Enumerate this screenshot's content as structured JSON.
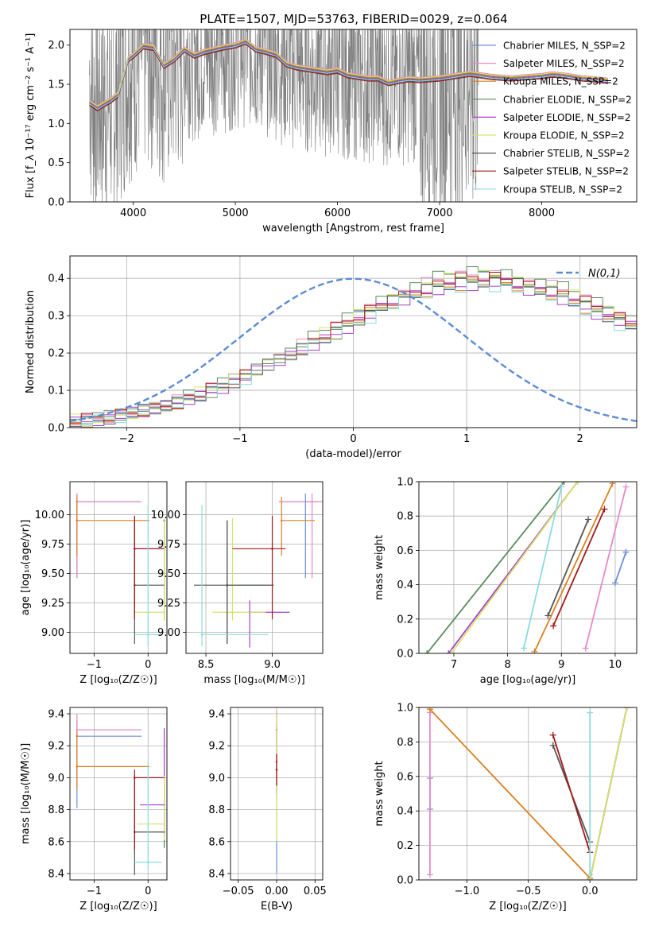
{
  "figure": {
    "title": "PLATE=1507, MJD=53763, FIBERID=0029, z=0.064"
  },
  "colors": {
    "data": "#7f7f7f",
    "grid": "#b0b0b0",
    "series": [
      "#6a8fd6",
      "#e68ac6",
      "#d9801f",
      "#5a8a5e",
      "#a83fc9",
      "#d6e36a",
      "#555555",
      "#a31a1a",
      "#8adbe0"
    ]
  },
  "chart_data": [
    {
      "id": "spectrum",
      "type": "line",
      "xlabel": "wavelength [Angstrom, rest frame]",
      "ylabel": "Flux [f_λ 10⁻¹⁷ erg cm⁻² s⁻¹ A⁻¹]",
      "xlim": [
        3380,
        8930
      ],
      "ylim": [
        0,
        2.2
      ],
      "xticks": [
        4000,
        5000,
        6000,
        7000,
        8000
      ],
      "yticks": [
        0.0,
        0.5,
        1.0,
        1.5,
        2.0
      ],
      "grid": false,
      "legend_position": "upper-right",
      "data_series": {
        "name": "",
        "x": [
          3570,
          3600,
          3650,
          3700,
          3750,
          3800,
          3850,
          3900,
          3950,
          4000,
          4100,
          4200,
          4300,
          4400,
          4500,
          4600,
          4700,
          4800,
          4900,
          5000,
          5100,
          5200,
          5300,
          5400,
          5500,
          5600,
          5700,
          5800,
          5900,
          6000,
          6100,
          6200,
          6300,
          6400,
          6500,
          6600,
          6700,
          6800,
          6900,
          7000,
          7100,
          7200,
          7300,
          7380
        ],
        "y": [
          1.65,
          1.3,
          1.28,
          1.25,
          1.35,
          1.25,
          1.5,
          1.6,
          1.82,
          1.85,
          1.98,
          1.95,
          1.75,
          1.8,
          1.95,
          1.85,
          1.92,
          1.95,
          1.97,
          2.0,
          2.05,
          1.95,
          1.92,
          1.88,
          1.75,
          1.72,
          1.7,
          1.68,
          1.66,
          1.68,
          1.62,
          1.6,
          1.58,
          1.58,
          1.52,
          1.55,
          1.57,
          1.56,
          1.57,
          1.58,
          1.6,
          1.62,
          1.62,
          1.6
        ]
      },
      "model_x": [
        3570,
        3650,
        3700,
        3780,
        3850,
        3950,
        4000,
        4100,
        4200,
        4300,
        4400,
        4500,
        4600,
        4700,
        4800,
        4900,
        5000,
        5100,
        5200,
        5300,
        5400,
        5500,
        5600,
        5700,
        5800,
        5900,
        6000,
        6100,
        6200,
        6300,
        6400,
        6500,
        6600,
        6700,
        6800,
        6900,
        7000,
        7100,
        7200,
        7300,
        7400,
        7500,
        7600,
        7700,
        7800,
        7900,
        8000,
        8100,
        8200,
        8300,
        8400,
        8500,
        8650
      ],
      "model_y": [
        1.25,
        1.18,
        1.22,
        1.28,
        1.35,
        1.8,
        1.85,
        1.97,
        1.95,
        1.72,
        1.8,
        1.93,
        1.85,
        1.9,
        1.93,
        1.96,
        1.98,
        2.03,
        1.93,
        1.9,
        1.86,
        1.74,
        1.7,
        1.68,
        1.66,
        1.64,
        1.66,
        1.6,
        1.58,
        1.56,
        1.56,
        1.5,
        1.53,
        1.55,
        1.54,
        1.55,
        1.56,
        1.58,
        1.6,
        1.62,
        1.6,
        1.58,
        1.57,
        1.56,
        1.57,
        1.58,
        1.59,
        1.61,
        1.6,
        1.58,
        1.56,
        1.55,
        1.53
      ],
      "series": [
        {
          "name": "Chabrier MILES, N_SSP=2",
          "offset": 0.04
        },
        {
          "name": "Salpeter MILES, N_SSP=2",
          "offset": 0.05
        },
        {
          "name": "Kroupa MILES, N_SSP=2",
          "offset": 0.03
        },
        {
          "name": "Chabrier ELODIE, N_SSP=2",
          "offset": 0.02
        },
        {
          "name": "Salpeter ELODIE, N_SSP=2",
          "offset": 0.01
        },
        {
          "name": "Kroupa ELODIE, N_SSP=2",
          "offset": 0.04
        },
        {
          "name": "Chabrier STELIB, N_SSP=2",
          "offset": -0.01
        },
        {
          "name": "Salpeter STELIB, N_SSP=2",
          "offset": -0.02
        },
        {
          "name": "Kroupa STELIB, N_SSP=2",
          "offset": 0.0
        }
      ]
    },
    {
      "id": "residuals",
      "type": "histogram",
      "xlabel": "(data-model)/error",
      "ylabel": "Normed distribution",
      "xlim": [
        -2.5,
        2.5
      ],
      "ylim": [
        0,
        0.46
      ],
      "xticks": [
        -2,
        -1,
        0,
        1,
        2
      ],
      "yticks": [
        0.0,
        0.1,
        0.2,
        0.3,
        0.4
      ],
      "grid": true,
      "legend_position": "upper-right",
      "reference_curve": {
        "name": "N(0,1)",
        "mean": 0,
        "sigma": 1
      },
      "bin_width": 0.1,
      "bins_start": -2.5,
      "base_values": [
        0.018,
        0.02,
        0.024,
        0.028,
        0.033,
        0.038,
        0.045,
        0.052,
        0.06,
        0.068,
        0.079,
        0.089,
        0.1,
        0.113,
        0.126,
        0.139,
        0.152,
        0.167,
        0.183,
        0.196,
        0.213,
        0.229,
        0.245,
        0.261,
        0.279,
        0.296,
        0.31,
        0.325,
        0.339,
        0.35,
        0.363,
        0.373,
        0.382,
        0.388,
        0.393,
        0.397,
        0.399,
        0.398,
        0.393,
        0.385,
        0.377,
        0.372,
        0.366,
        0.355,
        0.344,
        0.331,
        0.318,
        0.305,
        0.29,
        0.275,
        0.259,
        0.244,
        0.228,
        0.212,
        0.196,
        0.181,
        0.166,
        0.151,
        0.137,
        0.124,
        0.111,
        0.1,
        0.089,
        0.079,
        0.07,
        0.062,
        0.055,
        0.048,
        0.042,
        0.037,
        0.032,
        0.028,
        0.024,
        0.021,
        0.018,
        0.016,
        0.014,
        0.012,
        0.01,
        0.009
      ],
      "series_scale": [
        1.0,
        1.03,
        0.98,
        1.05,
        0.97,
        1.02,
        0.99,
        1.01,
        0.96
      ]
    },
    {
      "id": "age_vs_Z",
      "type": "scatter",
      "xlabel": "Z [log₁₀(Z/Z☉)]",
      "ylabel": "age  [log₁₀(age/yr)]",
      "xlim": [
        -1.45,
        0.35
      ],
      "ylim": [
        8.82,
        10.28
      ],
      "xticks": [
        -1,
        0
      ],
      "yticks": [
        9.0,
        9.25,
        9.5,
        9.75,
        10.0
      ],
      "grid": true,
      "points": [
        {
          "series": 0,
          "x": -1.32,
          "y": 10.11,
          "xerr": [
            0,
            1.15
          ],
          "yerr": [
            0.65,
            0.07
          ]
        },
        {
          "series": 1,
          "x": -1.32,
          "y": 10.11,
          "xerr": [
            0,
            1.2
          ],
          "yerr": [
            0.65,
            0.07
          ]
        },
        {
          "series": 2,
          "x": -1.32,
          "y": 9.95,
          "xerr": [
            0,
            1.35
          ],
          "yerr": [
            0.3,
            0.2
          ]
        },
        {
          "series": 3,
          "x": 0.3,
          "y": 9.95,
          "xerr": [
            0,
            0
          ],
          "yerr": [
            0.85,
            0.0
          ]
        },
        {
          "series": 4,
          "x": -0.25,
          "y": 9.71,
          "xerr": [
            0,
            0.55
          ],
          "yerr": [
            0.55,
            0.28
          ]
        },
        {
          "series": 5,
          "x": 0.3,
          "y": 9.17,
          "xerr": [
            0.55,
            0
          ],
          "yerr": [
            0.07,
            0.8
          ]
        },
        {
          "series": 6,
          "x": -0.25,
          "y": 9.4,
          "xerr": [
            0,
            0.55
          ],
          "yerr": [
            0.5,
            0.55
          ]
        },
        {
          "series": 7,
          "x": -0.25,
          "y": 9.71,
          "xerr": [
            0,
            0.55
          ],
          "yerr": [
            0.6,
            0.28
          ]
        },
        {
          "series": 8,
          "x": 0.0,
          "y": 8.98,
          "xerr": [
            0.25,
            0.25
          ],
          "yerr": [
            0.1,
            1.1
          ]
        }
      ]
    },
    {
      "id": "age_vs_mass",
      "type": "scatter",
      "xlabel": "mass [log₁₀(M/M☉)]",
      "ylabel": "",
      "xlim": [
        8.35,
        9.38
      ],
      "ylim": [
        8.82,
        10.28
      ],
      "xticks": [
        8.5,
        9.0
      ],
      "yticks": [
        9.0,
        9.25,
        9.5,
        9.75,
        10.0
      ],
      "grid": true,
      "points": [
        {
          "series": 0,
          "x": 9.25,
          "y": 10.11,
          "xerr": [
            0.2,
            0.1
          ],
          "yerr": [
            0.65,
            0.07
          ]
        },
        {
          "series": 1,
          "x": 9.3,
          "y": 10.11,
          "xerr": [
            0.25,
            0.1
          ],
          "yerr": [
            0.65,
            0.07
          ]
        },
        {
          "series": 2,
          "x": 9.07,
          "y": 9.95,
          "xerr": [
            0.0,
            0.25
          ],
          "yerr": [
            0.3,
            0.2
          ]
        },
        {
          "series": 3,
          "x": 8.66,
          "y": 9.4,
          "xerr": [
            0.0,
            0.35
          ],
          "yerr": [
            0.5,
            0.55
          ]
        },
        {
          "series": 4,
          "x": 8.83,
          "y": 9.17,
          "xerr": [
            0.0,
            0.3
          ],
          "yerr": [
            0.3,
            0.1
          ]
        },
        {
          "series": 5,
          "x": 8.7,
          "y": 9.17,
          "xerr": [
            0.15,
            0.25
          ],
          "yerr": [
            0.07,
            0.8
          ]
        },
        {
          "series": 6,
          "x": 8.66,
          "y": 9.4,
          "xerr": [
            0.25,
            0.35
          ],
          "yerr": [
            0.5,
            0.55
          ]
        },
        {
          "series": 7,
          "x": 9.0,
          "y": 9.71,
          "xerr": [
            0.3,
            0.1
          ],
          "yerr": [
            0.6,
            0.28
          ]
        },
        {
          "series": 8,
          "x": 8.47,
          "y": 8.98,
          "xerr": [
            0.0,
            0.5
          ],
          "yerr": [
            0.1,
            1.1
          ]
        }
      ]
    },
    {
      "id": "mass_weight_vs_age",
      "type": "line",
      "xlabel": "age  [log₁₀(age/yr)]",
      "ylabel": "mass weight",
      "xlim": [
        6.35,
        10.4
      ],
      "ylim": [
        0,
        1
      ],
      "xticks": [
        7,
        8,
        9,
        10
      ],
      "yticks": [
        0.0,
        0.2,
        0.4,
        0.6,
        0.8,
        1.0
      ],
      "grid": true,
      "lines": [
        {
          "series": 0,
          "x": [
            10.0,
            10.2
          ],
          "y": [
            0.41,
            0.59
          ]
        },
        {
          "series": 1,
          "x": [
            9.45,
            10.2
          ],
          "y": [
            0.03,
            0.97
          ]
        },
        {
          "series": 2,
          "x": [
            8.5,
            9.95
          ],
          "y": [
            0.01,
            0.99
          ]
        },
        {
          "series": 3,
          "x": [
            6.5,
            9.05
          ],
          "y": [
            0.0,
            1.0
          ]
        },
        {
          "series": 4,
          "x": [
            6.9,
            9.3
          ],
          "y": [
            0.0,
            1.0
          ]
        },
        {
          "series": 5,
          "x": [
            6.95,
            9.3
          ],
          "y": [
            0.0,
            1.0
          ]
        },
        {
          "series": 6,
          "x": [
            8.75,
            9.5
          ],
          "y": [
            0.22,
            0.78
          ]
        },
        {
          "series": 7,
          "x": [
            8.85,
            9.8
          ],
          "y": [
            0.16,
            0.84
          ]
        },
        {
          "series": 8,
          "x": [
            8.3,
            9.0
          ],
          "y": [
            0.03,
            0.97
          ]
        }
      ]
    },
    {
      "id": "mass_vs_Z",
      "type": "scatter",
      "xlabel": "Z [log₁₀(Z/Z☉)]",
      "ylabel": "mass [log₁₀(M/M☉)]",
      "xlim": [
        -1.45,
        0.35
      ],
      "ylim": [
        8.36,
        9.44
      ],
      "xticks": [
        -1,
        0
      ],
      "yticks": [
        8.4,
        8.6,
        8.8,
        9.0,
        9.2,
        9.4
      ],
      "grid": true,
      "points": [
        {
          "series": 0,
          "x": -1.32,
          "y": 9.26,
          "xerr": [
            0,
            1.2
          ],
          "yerr": [
            0.45,
            0.1
          ]
        },
        {
          "series": 1,
          "x": -1.32,
          "y": 9.3,
          "xerr": [
            0,
            1.2
          ],
          "yerr": [
            0.3,
            0.1
          ]
        },
        {
          "series": 2,
          "x": -1.32,
          "y": 9.07,
          "xerr": [
            0,
            1.35
          ],
          "yerr": [
            0.14,
            0.22
          ]
        },
        {
          "series": 3,
          "x": 0.3,
          "y": 8.66,
          "xerr": [
            0,
            0
          ],
          "yerr": [
            0.1,
            0.3
          ]
        },
        {
          "series": 4,
          "x": 0.3,
          "y": 8.83,
          "xerr": [
            0.45,
            0
          ],
          "yerr": [
            0.2,
            0.48
          ]
        },
        {
          "series": 5,
          "x": 0.3,
          "y": 8.71,
          "xerr": [
            0.5,
            0
          ],
          "yerr": [
            0.1,
            0.3
          ]
        },
        {
          "series": 6,
          "x": -0.25,
          "y": 8.66,
          "xerr": [
            0,
            0.55
          ],
          "yerr": [
            0.27,
            0.36
          ]
        },
        {
          "series": 7,
          "x": -0.25,
          "y": 9.0,
          "xerr": [
            0,
            0.55
          ],
          "yerr": [
            0.45,
            0.05
          ]
        },
        {
          "series": 8,
          "x": 0.0,
          "y": 8.47,
          "xerr": [
            0.25,
            0.25
          ],
          "yerr": [
            0.05,
            0.63
          ]
        }
      ]
    },
    {
      "id": "mass_vs_ebv",
      "type": "scatter",
      "xlabel": "E(B-V)",
      "ylabel": "",
      "xlim": [
        -0.06,
        0.06
      ],
      "ylim": [
        8.36,
        9.44
      ],
      "xticks": [
        -0.05,
        0.0,
        0.05
      ],
      "yticks": [
        8.4,
        8.6,
        8.8,
        9.0,
        9.2,
        9.4
      ],
      "grid": true,
      "points": [
        {
          "series": 0,
          "x": 0.0,
          "y": 9.0,
          "yerr": [
            0.6,
            0.4
          ]
        },
        {
          "series": 1,
          "x": 0.0,
          "y": 9.3,
          "yerr": [
            0.1,
            0.12
          ]
        },
        {
          "series": 4,
          "x": 0.0,
          "y": 9.1,
          "yerr": [
            0.2,
            0.22
          ]
        },
        {
          "series": 5,
          "x": 0.0,
          "y": 9.0,
          "yerr": [
            0.4,
            0.4
          ]
        },
        {
          "series": 7,
          "x": 0.0,
          "y": 9.05,
          "yerr": [
            0.1,
            0.1
          ]
        }
      ]
    },
    {
      "id": "mass_weight_vs_Z",
      "type": "line",
      "xlabel": "Z [log₁₀(Z/Z☉)]",
      "ylabel": "mass weight",
      "xlim": [
        -1.39,
        0.38
      ],
      "ylim": [
        0,
        1
      ],
      "xticks": [
        -1.0,
        -0.5,
        0.0
      ],
      "yticks": [
        0.0,
        0.2,
        0.4,
        0.6,
        0.8,
        1.0
      ],
      "grid": true,
      "lines": [
        {
          "series": 0,
          "x": [
            -1.3,
            -1.3
          ],
          "y": [
            0.41,
            0.59
          ]
        },
        {
          "series": 1,
          "x": [
            -1.3,
            -1.3
          ],
          "y": [
            0.03,
            0.97
          ]
        },
        {
          "series": 2,
          "x": [
            -1.3,
            0.0
          ],
          "y": [
            0.99,
            0.01
          ]
        },
        {
          "series": 3,
          "x": [
            0.0,
            0.3
          ],
          "y": [
            0.0,
            1.0
          ]
        },
        {
          "series": 4,
          "x": [
            0.0,
            0.3
          ],
          "y": [
            0.0,
            1.0
          ]
        },
        {
          "series": 5,
          "x": [
            0.0,
            0.3
          ],
          "y": [
            0.0,
            1.0
          ]
        },
        {
          "series": 6,
          "x": [
            -0.3,
            0.0
          ],
          "y": [
            0.78,
            0.22
          ]
        },
        {
          "series": 7,
          "x": [
            -0.3,
            0.0
          ],
          "y": [
            0.84,
            0.16
          ]
        },
        {
          "series": 8,
          "x": [
            0.0,
            0.0
          ],
          "y": [
            0.03,
            0.97
          ]
        }
      ]
    }
  ]
}
